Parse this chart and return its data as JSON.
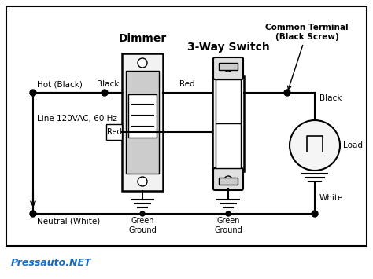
{
  "background_color": "#ffffff",
  "line_color": "#000000",
  "watermark": "Pressauto.NET",
  "watermark_color": "#1a6bbf",
  "dimmer_label": "Dimmer",
  "switch_label": "3-Way Switch",
  "common_terminal_label": "Common Terminal\n(Black Screw)",
  "hot_label": "Hot (Black)",
  "neutral_label": "Neutral (White)",
  "line_label": "Line 120VAC, 60 Hz",
  "black_label": "Black",
  "red_label": "Red",
  "green_ground_label": "Green\nGround",
  "white_label": "White",
  "load_label": "Load",
  "fig_width": 4.74,
  "fig_height": 3.55,
  "dpi": 100
}
